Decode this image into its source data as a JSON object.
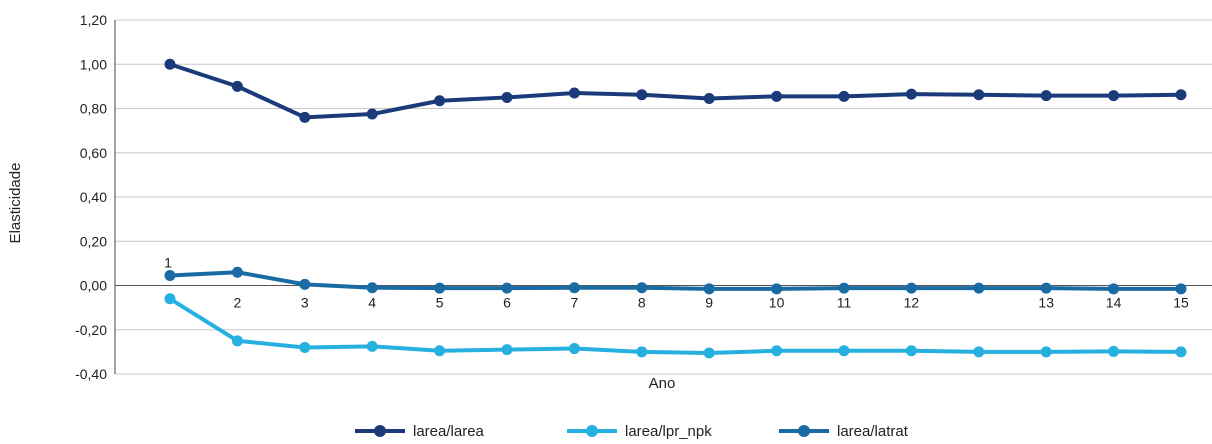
{
  "chart_data": {
    "type": "line",
    "title": "",
    "xlabel": "Ano",
    "ylabel": "Elasticidade",
    "ylim": [
      -0.4,
      1.2
    ],
    "yticks": [
      -0.4,
      -0.2,
      0.0,
      0.2,
      0.4,
      0.6,
      0.8,
      1.0,
      1.2
    ],
    "ytick_labels": [
      "-0,40",
      "-0,20",
      "0,00",
      "0,20",
      "0,40",
      "0,60",
      "0,80",
      "1,00",
      "1,20"
    ],
    "x": [
      1,
      2,
      3,
      4,
      5,
      6,
      7,
      8,
      9,
      10,
      11,
      12,
      13,
      14,
      15,
      16
    ],
    "x_labels": [
      "1",
      "2",
      "3",
      "4",
      "5",
      "6",
      "7",
      "8",
      "9",
      "10",
      "11",
      "12",
      "",
      "13",
      "14",
      "15"
    ],
    "grid": true,
    "legend_position": "bottom",
    "series": [
      {
        "name": "larea/larea",
        "color": "#1b3a7a",
        "values": [
          1.0,
          0.9,
          0.76,
          0.775,
          0.835,
          0.85,
          0.87,
          0.862,
          0.845,
          0.855,
          0.855,
          0.865,
          0.862,
          0.858,
          0.858,
          0.862
        ]
      },
      {
        "name": "larea/lpr_npk",
        "color": "#26b0e0",
        "values": [
          -0.06,
          -0.25,
          -0.28,
          -0.275,
          -0.295,
          -0.29,
          -0.285,
          -0.3,
          -0.305,
          -0.295,
          -0.295,
          -0.295,
          -0.3,
          -0.3,
          -0.298,
          -0.3
        ]
      },
      {
        "name": "larea/latrat",
        "color": "#1a6aa3",
        "values": [
          0.045,
          0.06,
          0.005,
          -0.01,
          -0.012,
          -0.012,
          -0.01,
          -0.01,
          -0.015,
          -0.015,
          -0.012,
          -0.012,
          -0.012,
          -0.012,
          -0.015,
          -0.015
        ]
      }
    ]
  }
}
